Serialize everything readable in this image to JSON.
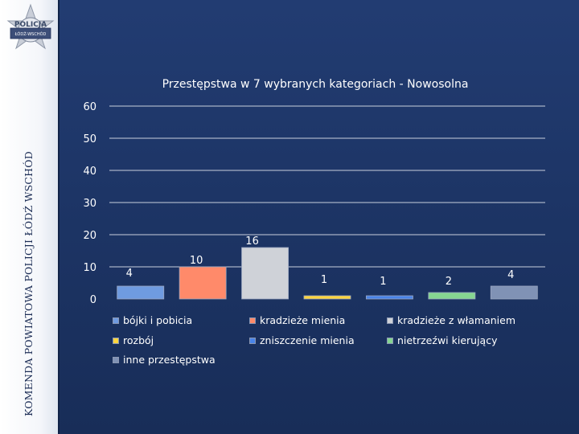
{
  "sidebar": {
    "vertical_text": "KOMENDA POWIATOWA POLICJI ŁÓDŹ WSCHÓD",
    "badge": {
      "top_text": "POLICJA",
      "bottom_text": "ŁÓDŹ-WSCHÓD"
    }
  },
  "colors": {
    "background": "#1d3566",
    "gridline": "#c8cfdd",
    "series": [
      "#6f9be0",
      "#ff8a6a",
      "#cfd2d8",
      "#ffd53d",
      "#4a84e8",
      "#86d691",
      "#8092b5"
    ]
  },
  "chart_data": {
    "type": "bar",
    "title": "Przestępstwa w 7 wybranych kategoriach - Nowosolna",
    "xlabel": "",
    "ylabel": "",
    "ylim": [
      0,
      60
    ],
    "yticks": [
      0,
      10,
      20,
      30,
      40,
      50,
      60
    ],
    "grid": true,
    "legend_position": "bottom",
    "categories": [
      "bójki i pobicia",
      "kradzieże mienia",
      "kradzieże z włamaniem",
      "rozbój",
      "zniszczenie mienia",
      "nietrzeźwi kierujący",
      "inne przestępstwa"
    ],
    "values": [
      4,
      10,
      16,
      1,
      1,
      2,
      4
    ],
    "data_labels": [
      "4",
      "10",
      "16",
      "1",
      "1",
      "2",
      "4"
    ]
  }
}
